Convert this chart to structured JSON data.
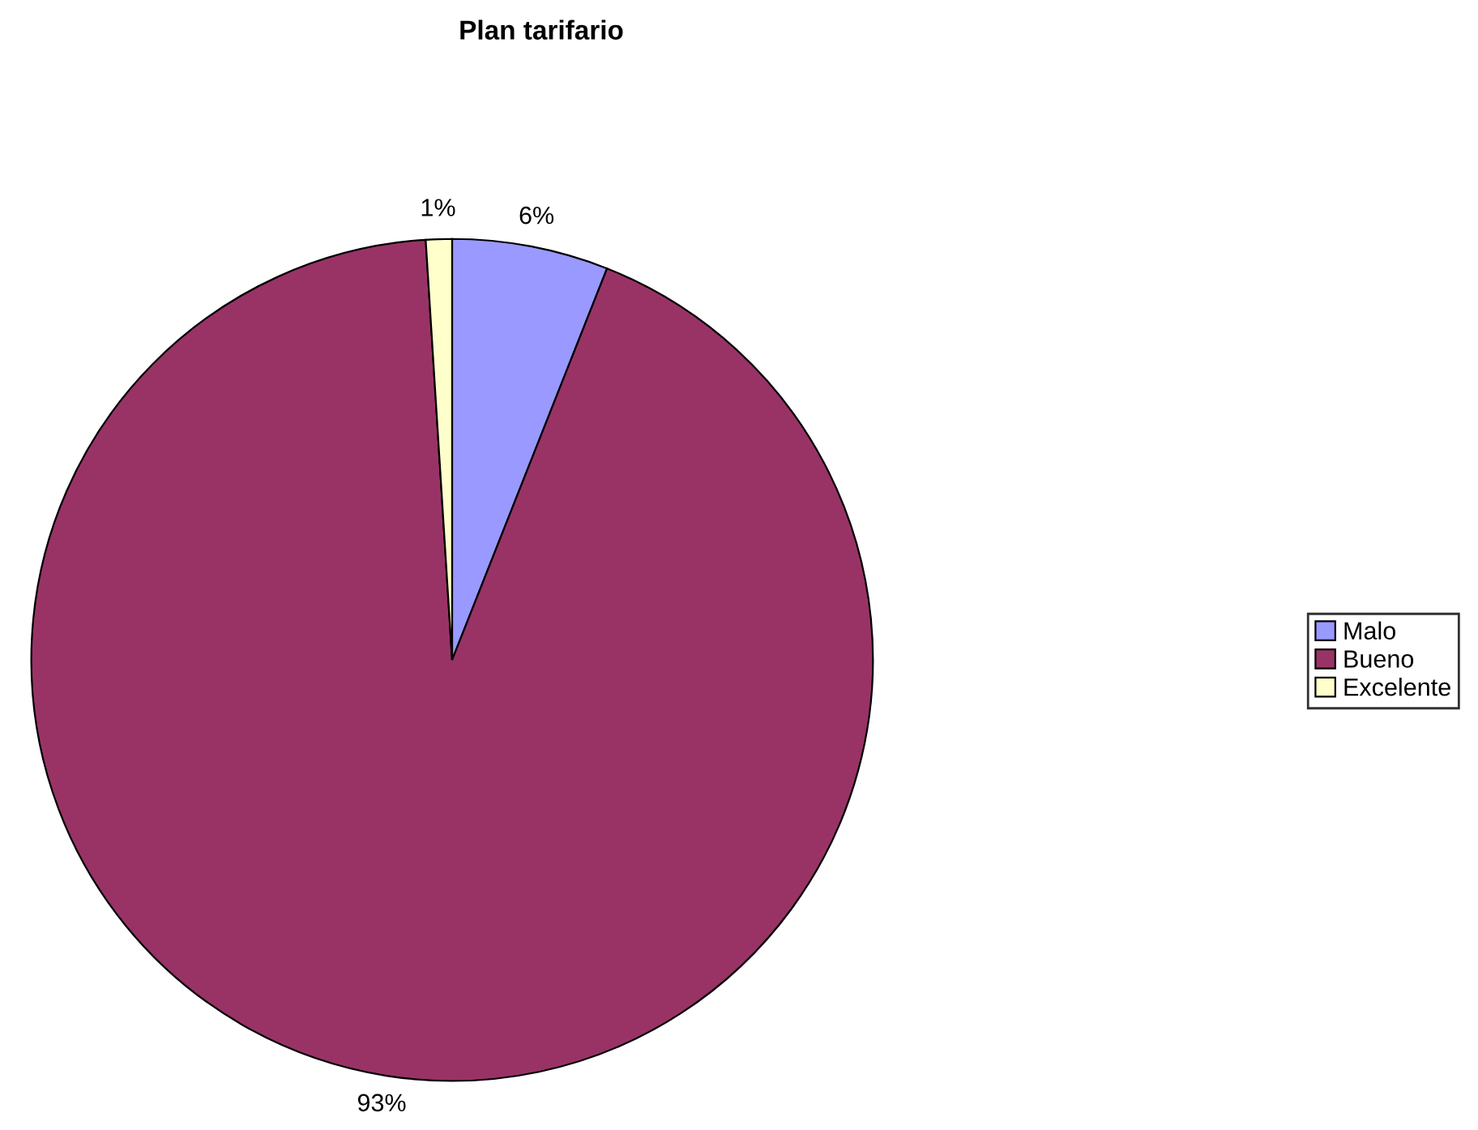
{
  "chart_data": {
    "type": "pie",
    "title": "Plan tarifario",
    "categories": [
      "Malo",
      "Bueno",
      "Excelente"
    ],
    "values": [
      6,
      93,
      1
    ],
    "value_labels": [
      "6%",
      "93%",
      "1%"
    ],
    "colors": [
      "#9999ff",
      "#993366",
      "#ffffcc"
    ],
    "legend": "right"
  }
}
